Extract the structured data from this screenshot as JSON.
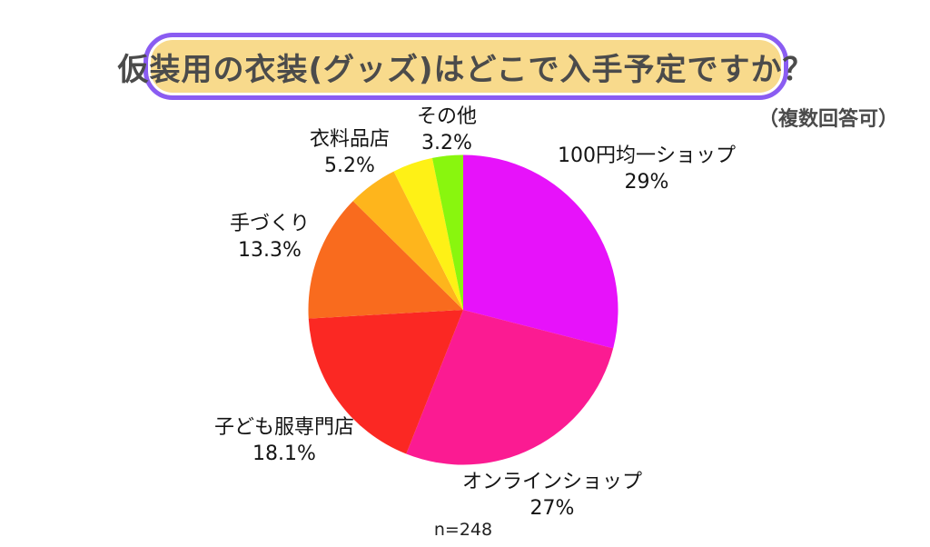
{
  "page": {
    "background_color": "#ffffff"
  },
  "header": {
    "title": "仮装用の衣装(グッズ)はどこで入手予定ですか？",
    "note": "（複数回答可）",
    "title_box_fill": "#f8da8c",
    "title_box_border": "#8a5cf2",
    "title_text_color": "#4b4b4b"
  },
  "chart_data": {
    "type": "pie",
    "title": "仮装用の衣装(グッズ)はどこで入手予定ですか？",
    "note": "（複数回答可）",
    "sample_size_label": "n=248",
    "start_angle_deg": 0,
    "direction": "clockwise",
    "slices": [
      {
        "label": "100円均一ショップ",
        "pct_label": "29%",
        "value": 29,
        "color": "#e712fa"
      },
      {
        "label": "オンラインショップ",
        "pct_label": "27%",
        "value": 27,
        "color": "#fb1b92"
      },
      {
        "label": "子ども服専門店",
        "pct_label": "18.1%",
        "value": 18.1,
        "color": "#fb2823"
      },
      {
        "label": "手づくり",
        "pct_label": "13.3%",
        "value": 13.3,
        "color": "#f96b1e"
      },
      {
        "label": "衣料品店",
        "pct_label": "5.2%",
        "value": 5.2,
        "color": "#feb51c"
      },
      {
        "label": "",
        "pct_label": "",
        "value": 4.2,
        "color": "#fef116"
      },
      {
        "label": "その他",
        "pct_label": "3.2%",
        "value": 3.2,
        "color": "#89f60e"
      }
    ]
  }
}
